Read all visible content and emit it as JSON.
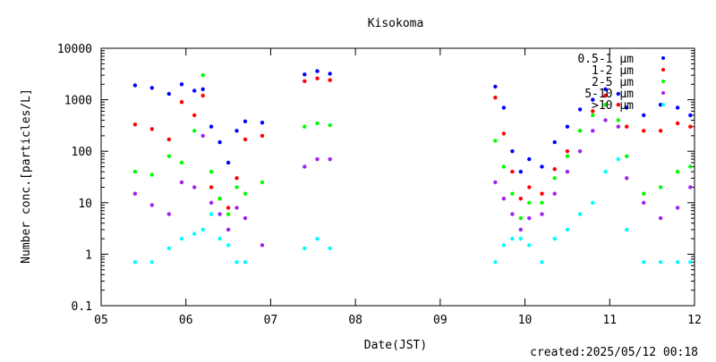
{
  "chart_data": {
    "type": "scatter",
    "title": "Kisokoma",
    "xlabel": "Date(JST)",
    "ylabel": "Number conc.[particles/L]",
    "footer": "created:2025/05/12 00:18",
    "y_scale": "log",
    "ylim": [
      0.1,
      10000
    ],
    "y_ticks": [
      {
        "value": 0.1,
        "label": "0.1"
      },
      {
        "value": 1,
        "label": "1"
      },
      {
        "value": 10,
        "label": "10"
      },
      {
        "value": 100,
        "label": "100"
      },
      {
        "value": 1000,
        "label": "1000"
      },
      {
        "value": 10000,
        "label": "10000"
      }
    ],
    "x_unit": "day",
    "xlim": [
      5,
      12
    ],
    "x_ticks": [
      {
        "value": 5,
        "label": "05"
      },
      {
        "value": 6,
        "label": "06"
      },
      {
        "value": 7,
        "label": "07"
      },
      {
        "value": 8,
        "label": "08"
      },
      {
        "value": 9,
        "label": "09"
      },
      {
        "value": 10,
        "label": "10"
      },
      {
        "value": 11,
        "label": "11"
      },
      {
        "value": 12,
        "label": "12"
      }
    ],
    "grid": false,
    "legend_position": "top-right",
    "series": [
      {
        "name": "0.5-1 μm",
        "color": "#0000ff",
        "points": [
          [
            5.4,
            1900
          ],
          [
            5.6,
            1700
          ],
          [
            5.8,
            1300
          ],
          [
            5.95,
            2000
          ],
          [
            6.1,
            1500
          ],
          [
            6.2,
            1600
          ],
          [
            6.3,
            300
          ],
          [
            6.4,
            150
          ],
          [
            6.5,
            60
          ],
          [
            6.6,
            250
          ],
          [
            6.7,
            380
          ],
          [
            6.9,
            360
          ],
          [
            7.4,
            3100
          ],
          [
            7.55,
            3600
          ],
          [
            7.7,
            3200
          ],
          [
            9.65,
            1800
          ],
          [
            9.75,
            700
          ],
          [
            9.85,
            100
          ],
          [
            9.95,
            40
          ],
          [
            10.05,
            70
          ],
          [
            10.2,
            50
          ],
          [
            10.35,
            150
          ],
          [
            10.5,
            300
          ],
          [
            10.65,
            650
          ],
          [
            10.8,
            1000
          ],
          [
            10.95,
            1600
          ],
          [
            11.1,
            1300
          ],
          [
            11.2,
            700
          ],
          [
            11.4,
            500
          ],
          [
            11.6,
            800
          ],
          [
            11.8,
            700
          ],
          [
            11.95,
            500
          ]
        ]
      },
      {
        "name": "1-2 μm",
        "color": "#ff0000",
        "points": [
          [
            5.4,
            330
          ],
          [
            5.6,
            270
          ],
          [
            5.8,
            170
          ],
          [
            5.95,
            900
          ],
          [
            6.1,
            500
          ],
          [
            6.2,
            1200
          ],
          [
            6.3,
            20
          ],
          [
            6.4,
            12
          ],
          [
            6.5,
            8
          ],
          [
            6.6,
            30
          ],
          [
            6.7,
            170
          ],
          [
            6.9,
            200
          ],
          [
            7.4,
            2300
          ],
          [
            7.55,
            2600
          ],
          [
            7.7,
            2400
          ],
          [
            9.65,
            1100
          ],
          [
            9.75,
            220
          ],
          [
            9.85,
            40
          ],
          [
            9.95,
            12
          ],
          [
            10.05,
            20
          ],
          [
            10.2,
            15
          ],
          [
            10.35,
            45
          ],
          [
            10.5,
            100
          ],
          [
            10.65,
            250
          ],
          [
            10.8,
            600
          ],
          [
            10.95,
            1200
          ],
          [
            11.1,
            800
          ],
          [
            11.2,
            300
          ],
          [
            11.4,
            250
          ],
          [
            11.6,
            250
          ],
          [
            11.8,
            350
          ],
          [
            11.95,
            300
          ]
        ]
      },
      {
        "name": "2-5 μm",
        "color": "#00ff00",
        "points": [
          [
            5.4,
            40
          ],
          [
            5.6,
            35
          ],
          [
            5.8,
            80
          ],
          [
            5.95,
            60
          ],
          [
            6.1,
            250
          ],
          [
            6.2,
            3000
          ],
          [
            6.3,
            40
          ],
          [
            6.4,
            12
          ],
          [
            6.5,
            6
          ],
          [
            6.6,
            20
          ],
          [
            6.7,
            15
          ],
          [
            6.9,
            25
          ],
          [
            7.4,
            300
          ],
          [
            7.55,
            350
          ],
          [
            7.7,
            320
          ],
          [
            9.65,
            160
          ],
          [
            9.75,
            50
          ],
          [
            9.85,
            15
          ],
          [
            9.95,
            5
          ],
          [
            10.05,
            10
          ],
          [
            10.2,
            10
          ],
          [
            10.35,
            30
          ],
          [
            10.5,
            80
          ],
          [
            10.65,
            250
          ],
          [
            10.8,
            500
          ],
          [
            10.95,
            800
          ],
          [
            11.1,
            400
          ],
          [
            11.2,
            80
          ],
          [
            11.4,
            15
          ],
          [
            11.6,
            20
          ],
          [
            11.8,
            40
          ],
          [
            11.95,
            50
          ]
        ]
      },
      {
        "name": "5-10 μm",
        "color": "#a020f0",
        "points": [
          [
            5.4,
            15
          ],
          [
            5.6,
            9
          ],
          [
            5.8,
            6
          ],
          [
            5.95,
            25
          ],
          [
            6.1,
            20
          ],
          [
            6.2,
            200
          ],
          [
            6.3,
            10
          ],
          [
            6.4,
            6
          ],
          [
            6.5,
            3
          ],
          [
            6.6,
            8
          ],
          [
            6.7,
            5
          ],
          [
            6.9,
            1.5
          ],
          [
            7.4,
            50
          ],
          [
            7.55,
            70
          ],
          [
            7.7,
            70
          ],
          [
            9.65,
            25
          ],
          [
            9.75,
            12
          ],
          [
            9.85,
            6
          ],
          [
            9.95,
            3
          ],
          [
            10.05,
            5
          ],
          [
            10.2,
            6
          ],
          [
            10.35,
            15
          ],
          [
            10.5,
            40
          ],
          [
            10.65,
            100
          ],
          [
            10.8,
            250
          ],
          [
            10.95,
            400
          ],
          [
            11.1,
            300
          ],
          [
            11.2,
            30
          ],
          [
            11.4,
            10
          ],
          [
            11.6,
            5
          ],
          [
            11.8,
            8
          ],
          [
            11.95,
            20
          ]
        ]
      },
      {
        "name": ">10 μm",
        "color": "#00ffff",
        "points": [
          [
            5.4,
            0.7
          ],
          [
            5.6,
            0.7
          ],
          [
            5.8,
            1.3
          ],
          [
            5.95,
            2
          ],
          [
            6.1,
            2.5
          ],
          [
            6.2,
            3
          ],
          [
            6.3,
            6
          ],
          [
            6.4,
            2
          ],
          [
            6.5,
            1.5
          ],
          [
            6.6,
            0.7
          ],
          [
            6.7,
            0.7
          ],
          [
            7.4,
            1.3
          ],
          [
            7.55,
            2
          ],
          [
            7.7,
            1.3
          ],
          [
            9.65,
            0.7
          ],
          [
            9.75,
            1.5
          ],
          [
            9.85,
            2
          ],
          [
            9.95,
            2
          ],
          [
            10.05,
            1.5
          ],
          [
            10.2,
            0.7
          ],
          [
            10.35,
            2
          ],
          [
            10.5,
            3
          ],
          [
            10.65,
            6
          ],
          [
            10.8,
            10
          ],
          [
            10.95,
            40
          ],
          [
            11.1,
            70
          ],
          [
            11.2,
            3
          ],
          [
            11.4,
            0.7
          ],
          [
            11.6,
            0.7
          ],
          [
            11.8,
            0.7
          ],
          [
            11.95,
            0.7
          ]
        ]
      }
    ]
  }
}
